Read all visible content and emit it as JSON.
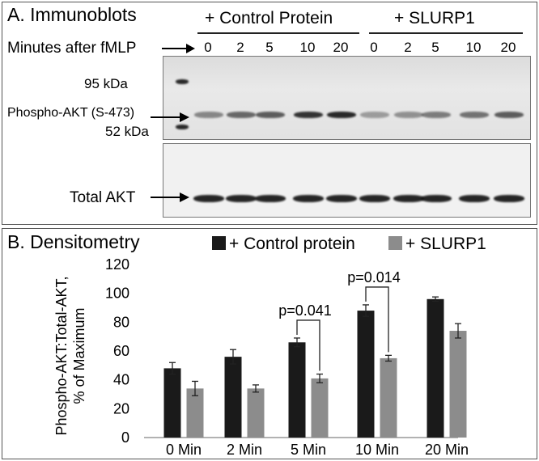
{
  "panel_a": {
    "title": "A. Immunoblots",
    "group_labels": [
      "+ Control Protein",
      "+ SLURP1"
    ],
    "time_row_label": "Minutes after fMLP",
    "time_points": [
      "0",
      "2",
      "5",
      "10",
      "20",
      "0",
      "2",
      "5",
      "10",
      "20"
    ],
    "marker_95": "95 kDa",
    "marker_52": "52 kDa",
    "phospho_label": "Phospho-AKT (S-473)",
    "total_label": "Total AKT",
    "colors": {
      "band": "#141414",
      "blot_bg": "#e9e9e9",
      "blot_bg_lower": "#f1f1f1"
    }
  },
  "panel_b": {
    "title": "B. Densitometry",
    "legend": [
      "+ Control protein",
      "+ SLURP1"
    ],
    "ylabel_line1": "Phospho-AKT:Total-AKT,",
    "ylabel_line2": "% of Maximum",
    "annotations": [
      {
        "text": "p=0.041",
        "category_index": 2
      },
      {
        "text": "p=0.014",
        "category_index": 3
      }
    ]
  },
  "chart_data": {
    "type": "bar",
    "title": "B. Densitometry",
    "xlabel": "",
    "ylabel": "Phospho-AKT:Total-AKT, % of Maximum",
    "categories": [
      "0 Min",
      "2 Min",
      "5 Min",
      "10 Min",
      "20 Min"
    ],
    "series": [
      {
        "name": "+ Control protein",
        "color": "#1a1a1a",
        "values": [
          48,
          56,
          66,
          88,
          96
        ],
        "errors": [
          4,
          5,
          3,
          4,
          1.5
        ]
      },
      {
        "name": "+ SLURP1",
        "color": "#8c8c8c",
        "values": [
          34,
          34,
          41,
          55,
          74
        ],
        "errors": [
          5,
          2.5,
          3,
          2,
          5
        ]
      }
    ],
    "ylim": [
      0,
      120
    ],
    "yticks": [
      0,
      20,
      40,
      60,
      80,
      100,
      120
    ],
    "grid": false,
    "legend_position": "top"
  }
}
